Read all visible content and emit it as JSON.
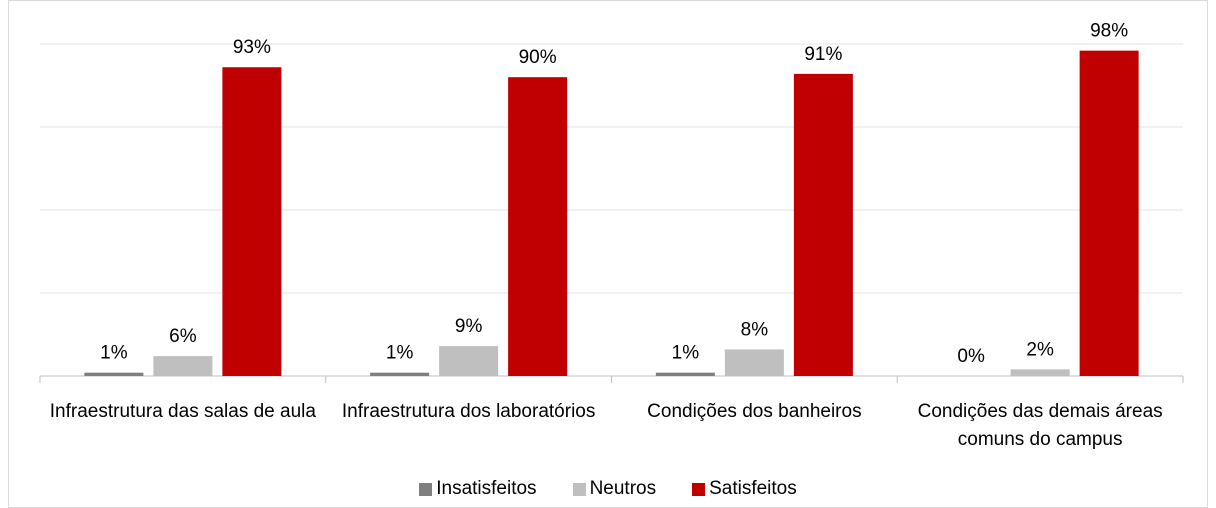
{
  "chart_data": {
    "type": "bar",
    "categories": [
      "Infraestrutura das salas de aula",
      "Infraestrutura dos laboratórios",
      "Condições dos banheiros",
      "Condições das demais áreas comuns do campus"
    ],
    "series": [
      {
        "name": "Insatisfeitos",
        "color": "#7f7f7f",
        "values": [
          1,
          1,
          1,
          0
        ],
        "value_labels": [
          "1%",
          "1%",
          "1%",
          "0%"
        ]
      },
      {
        "name": "Neutros",
        "color": "#bfbfbf",
        "values": [
          6,
          9,
          8,
          2
        ],
        "value_labels": [
          "6%",
          "9%",
          "8%",
          "2%"
        ]
      },
      {
        "name": "Satisfeitos",
        "color": "#c00000",
        "values": [
          93,
          90,
          91,
          98
        ],
        "value_labels": [
          "93%",
          "90%",
          "91%",
          "98%"
        ]
      }
    ],
    "ylim": [
      0,
      100
    ],
    "yticks": [
      0,
      25,
      50,
      75,
      100
    ],
    "grid": true,
    "legend": "bottom"
  }
}
